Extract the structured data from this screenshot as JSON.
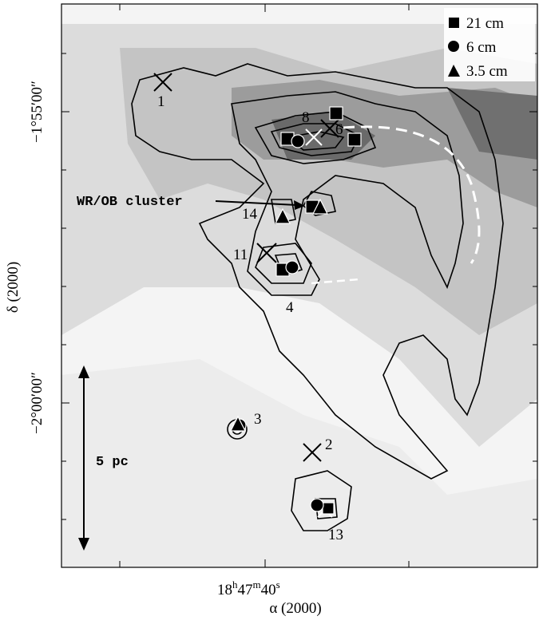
{
  "legend": {
    "items": [
      "21 cm",
      "6 cm",
      "3.5 cm"
    ]
  },
  "sources": {
    "labels": [
      "1",
      "8",
      "6",
      "14",
      "11",
      "4",
      "3",
      "2",
      "13"
    ]
  },
  "annotations": {
    "cluster": "WR/OB cluster",
    "scale": "5 pc"
  },
  "axes": {
    "dec_ticks": [
      "−1°55′00″",
      "−2°00′00″"
    ],
    "dec_label": "δ (2000)",
    "ra_tick": {
      "parts": [
        "18",
        "h",
        "47",
        "m",
        "40",
        "s"
      ]
    },
    "ra_label": "α (2000)"
  }
}
